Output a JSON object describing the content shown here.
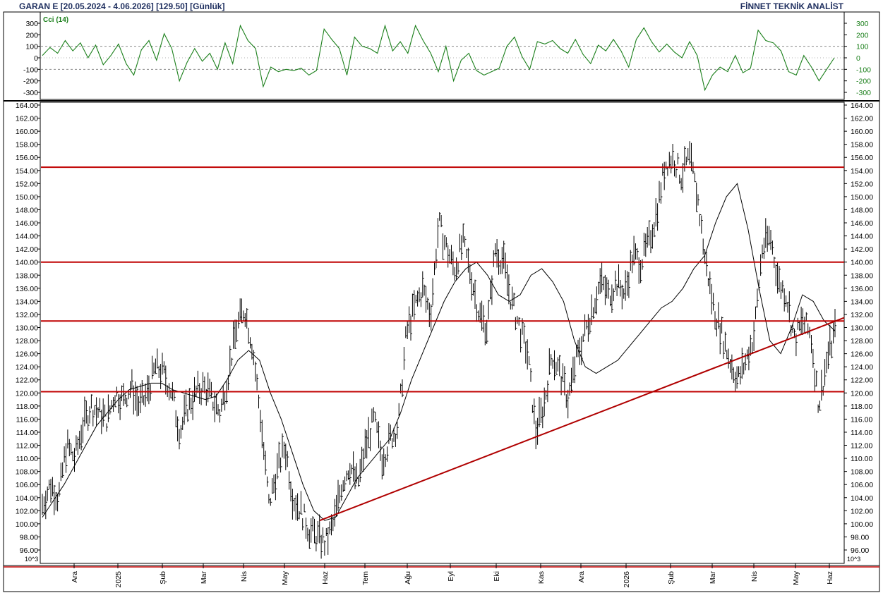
{
  "header": {
    "left": "GARAN E  [20.05.2024 - 4.06.2026]  [129.50]  [Günlük]",
    "right": "FİNNET TEKNİK ANALİST"
  },
  "colors": {
    "price": "#000000",
    "cci": "#1a7f1a",
    "levels": "#c00000",
    "trendline": "#b00000",
    "text": "#1f2f5f"
  },
  "chart_data": [
    {
      "type": "line",
      "title": "Cci (14)",
      "ylim": [
        -350,
        350
      ],
      "yticks": [
        300,
        200,
        100,
        0,
        -100,
        -200,
        -300
      ],
      "reference_lines": [
        100,
        -100
      ],
      "series": [
        {
          "name": "Cci (14)",
          "values": [
            20,
            90,
            40,
            150,
            60,
            130,
            0,
            110,
            -60,
            20,
            120,
            -50,
            -150,
            70,
            150,
            -20,
            210,
            80,
            -200,
            -40,
            80,
            -30,
            40,
            -100,
            130,
            -50,
            280,
            150,
            80,
            -250,
            -80,
            -120,
            -100,
            -110,
            -90,
            -150,
            -110,
            250,
            160,
            80,
            -150,
            180,
            100,
            80,
            40,
            280,
            60,
            140,
            40,
            280,
            150,
            40,
            -120,
            100,
            -200,
            -20,
            40,
            -110,
            -150,
            -120,
            -90,
            100,
            180,
            10,
            -100,
            140,
            120,
            150,
            80,
            40,
            160,
            30,
            -50,
            110,
            60,
            160,
            60,
            -80,
            160,
            260,
            140,
            50,
            120,
            50,
            0,
            140,
            20,
            -280,
            -150,
            -80,
            -120,
            20,
            -130,
            -90,
            240,
            150,
            130,
            60,
            -120,
            -150,
            20,
            -80,
            -200,
            -100,
            0
          ]
        }
      ]
    },
    {
      "type": "candlestick",
      "title": "",
      "ylim": [
        94,
        164.5
      ],
      "yticks": [
        164,
        162,
        160,
        158,
        156,
        154,
        152,
        150,
        148,
        146,
        144,
        142,
        140,
        138,
        136,
        134,
        132,
        130,
        128,
        126,
        124,
        122,
        120,
        118,
        116,
        114,
        112,
        110,
        108,
        106,
        104,
        102,
        100,
        98,
        96
      ],
      "x_labels": [
        "Ara",
        "2025",
        "Şub",
        "Mar",
        "Nis",
        "May",
        "Haz",
        "Tem",
        "Ağu",
        "Eyl",
        "Eki",
        "Kas",
        "Ara",
        "2026",
        "Şub",
        "Mar",
        "Nis",
        "May",
        "Haz"
      ],
      "axis_note": "10^3",
      "horizontal_levels": [
        154.5,
        140.0,
        131.0,
        120.2
      ],
      "trendline": {
        "from": [
          "Haz 2025",
          100.5
        ],
        "to": [
          "Haz 2026",
          131.5
        ]
      },
      "series": [
        {
          "name": "Price",
          "values": [
            103,
            106,
            104,
            112,
            110,
            115,
            118,
            117,
            116,
            120,
            119,
            121,
            118,
            120,
            124,
            123,
            120,
            114,
            118,
            120,
            121,
            119,
            117,
            123,
            130,
            133,
            127,
            116,
            103,
            108,
            112,
            104,
            102,
            99,
            98,
            97,
            100,
            106,
            109,
            106,
            112,
            116,
            110,
            113,
            115,
            129,
            133,
            136,
            132,
            146,
            142,
            139,
            143,
            138,
            132,
            130,
            142,
            140,
            134,
            130,
            126,
            114,
            118,
            126,
            123,
            119,
            125,
            129,
            133,
            137,
            135,
            137,
            135,
            141,
            140,
            143,
            148,
            155,
            156,
            153,
            156,
            150,
            140,
            133,
            129,
            125,
            122,
            125,
            129,
            142,
            144,
            137,
            135,
            128,
            131,
            129,
            118,
            125,
            129.5
          ]
        },
        {
          "name": "MA",
          "values": [
            101,
            103.5,
            106,
            109,
            112,
            115,
            117,
            119,
            120.5,
            121,
            121.5,
            121.5,
            120.5,
            120,
            119.5,
            119,
            119.5,
            122,
            125,
            126.5,
            125,
            120,
            116,
            111,
            106,
            102,
            100.5,
            101,
            104,
            107,
            109,
            111,
            113,
            117,
            122,
            126,
            130,
            134,
            137,
            139,
            140,
            138,
            135,
            134,
            135,
            138,
            139,
            137,
            134,
            128,
            124,
            123,
            124,
            125,
            127,
            129,
            131,
            133,
            134,
            136,
            139,
            141,
            146,
            150,
            152,
            145,
            136,
            128,
            126,
            130,
            135,
            134,
            131,
            129.5
          ]
        }
      ]
    }
  ]
}
